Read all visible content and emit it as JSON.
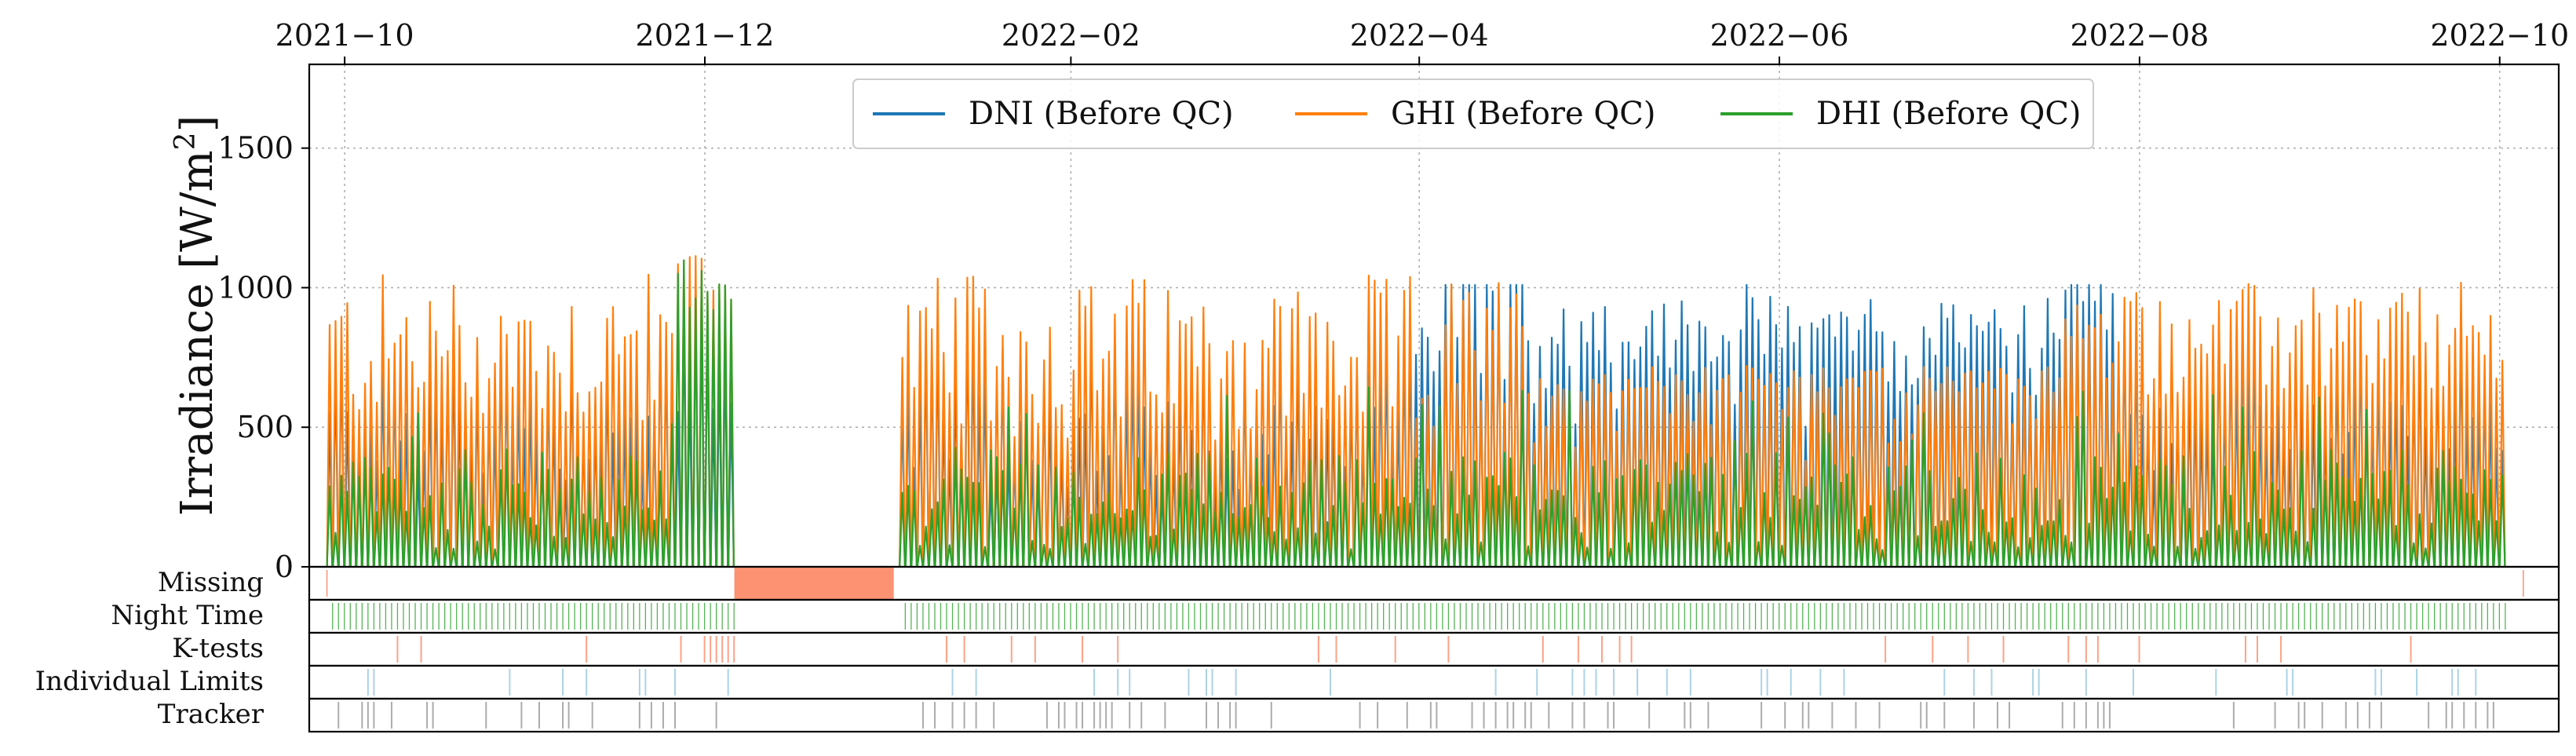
{
  "chart_data": {
    "type": "line",
    "title": "",
    "xlabel": "",
    "ylabel": "Irradiance [W/m²]",
    "ylabel_parts": {
      "main": "Irradiance [W/m",
      "sup": "2",
      "close": "]"
    },
    "ylim": [
      0,
      1800
    ],
    "y_ticks": [
      0,
      500,
      1000,
      1500
    ],
    "y_tick_labels": [
      "0",
      "500",
      "1000",
      "1500"
    ],
    "x_range_days": [
      -6,
      375
    ],
    "x_ticks": [
      {
        "day": 0,
        "label": "2021−10"
      },
      {
        "day": 61,
        "label": "2021−12"
      },
      {
        "day": 123,
        "label": "2022−02"
      },
      {
        "day": 182,
        "label": "2022−04"
      },
      {
        "day": 243,
        "label": "2022−06"
      },
      {
        "day": 304,
        "label": "2022−08"
      },
      {
        "day": 365,
        "label": "2022−10"
      }
    ],
    "x_tick_position": "top",
    "grid": true,
    "legend": {
      "location": "top-center",
      "entries": [
        "DNI (Before QC)",
        "GHI (Before QC)",
        "DHI (Before QC)"
      ]
    },
    "data_start_day": -3,
    "data_end_day": 365,
    "gap_days": [
      66,
      93
    ],
    "series": [
      {
        "name": "DNI (Before QC)",
        "color": "#1f77b4",
        "description": "daily clear-sky peaks",
        "peak_range": [
          250,
          1010
        ]
      },
      {
        "name": "GHI (Before QC)",
        "color": "#ff7f0e",
        "description": "daily peaks",
        "peak_range": [
          300,
          1150
        ]
      },
      {
        "name": "DHI (Before QC)",
        "color": "#2ca02c",
        "description": "daily diffuse peaks",
        "peak_range": [
          80,
          1130
        ]
      }
    ],
    "qc_strips": [
      {
        "label": "Missing",
        "color": "#fc9272",
        "spans": [
          [
            66,
            93
          ]
        ],
        "ticks": [
          -3,
          369
        ]
      },
      {
        "label": "Night Time",
        "color": "#2ca02c",
        "pattern": "daily",
        "density": 1
      },
      {
        "label": "K-tests",
        "color": "#fc9272",
        "pattern": "sparse",
        "density": 0.08,
        "dense_days": [
          60,
          61,
          62,
          63,
          64,
          65
        ]
      },
      {
        "label": "Individual Limits",
        "color": "#9ecae1",
        "pattern": "sparse",
        "density": 0.12
      },
      {
        "label": "Tracker",
        "color": "#9e9e9e",
        "pattern": "sparse",
        "density": 0.3
      }
    ]
  }
}
